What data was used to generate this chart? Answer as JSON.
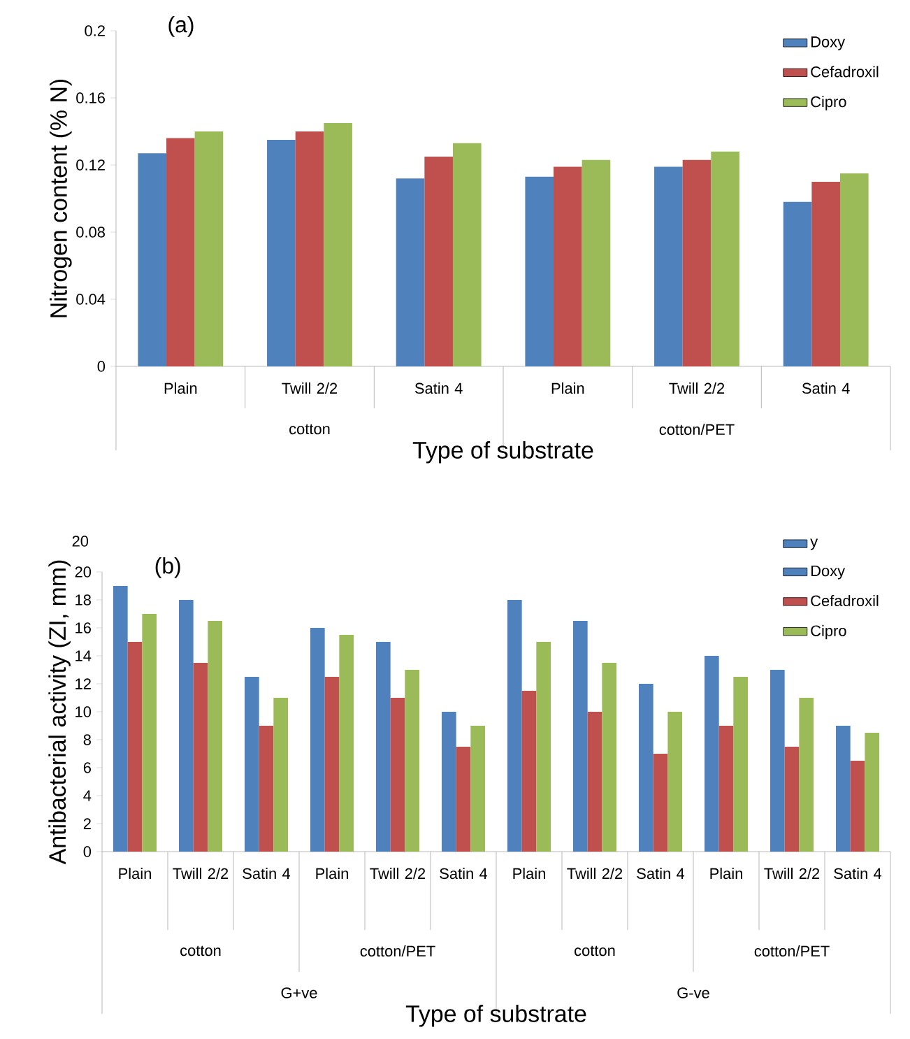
{
  "chart_data": [
    {
      "type": "bar",
      "title": "(a)",
      "xlabel": "Type of substrate",
      "ylabel": "Nitrogen content (% N)",
      "categories": [
        "Plain",
        "Twill 2/2",
        "Satin 4",
        "Plain",
        "Twill 2/2",
        "Satin 4"
      ],
      "annotations": [
        "cotton",
        "cotton/PET"
      ],
      "series": [
        {
          "name": "Doxy",
          "color": "#4f81bd",
          "values": [
            0.127,
            0.135,
            0.112,
            0.113,
            0.119,
            0.098
          ]
        },
        {
          "name": "Cefadroxil",
          "color": "#c0504d",
          "values": [
            0.136,
            0.14,
            0.125,
            0.119,
            0.123,
            0.11
          ]
        },
        {
          "name": "Cipro",
          "color": "#9bbb59",
          "values": [
            0.14,
            0.145,
            0.133,
            0.123,
            0.128,
            0.115
          ]
        }
      ],
      "ylim": [
        0,
        0.2
      ],
      "yticks": [
        0,
        0.04,
        0.08,
        0.12,
        0.16,
        0.2
      ],
      "legend": "top right"
    },
    {
      "type": "bar",
      "title": "(b)",
      "xlabel": "Type of substrate",
      "ylabel": "Antibacterial activity (ZI, mm)",
      "categories": [
        "Plain",
        "Twill 2/2",
        "Satin 4",
        "Plain",
        "Twill 2/2",
        "Satin 4",
        "Plain",
        "Twill 2/2",
        "Satin 4",
        "Plain",
        "Twill 2/2",
        "Satin 4"
      ],
      "annotations": [
        "cotton",
        "cotton/PET",
        "cotton",
        "cotton/PET",
        "G+ve",
        "G-ve",
        "20"
      ],
      "series": [
        {
          "name": "y",
          "color": "#4f81bd",
          "values": [
            null,
            null,
            null,
            null,
            null,
            null,
            null,
            null,
            null,
            null,
            null,
            null
          ]
        },
        {
          "name": "Doxy",
          "color": "#4f81bd",
          "values": [
            19,
            18,
            12.5,
            16,
            15,
            10,
            18,
            16.5,
            12,
            14,
            13,
            9
          ]
        },
        {
          "name": "Cefadroxil",
          "color": "#c0504d",
          "values": [
            15,
            13.5,
            9,
            12.5,
            11,
            7.5,
            11.5,
            10,
            7,
            9,
            7.5,
            6.5
          ]
        },
        {
          "name": "Cipro",
          "color": "#9bbb59",
          "values": [
            17,
            16.5,
            11,
            15.5,
            13,
            9,
            15,
            13.5,
            10,
            12.5,
            11,
            8.5
          ]
        }
      ],
      "ylim": [
        0,
        20
      ],
      "yticks": [
        0,
        2,
        4,
        6,
        8,
        10,
        12,
        14,
        16,
        18,
        20
      ],
      "legend": "top right"
    }
  ]
}
